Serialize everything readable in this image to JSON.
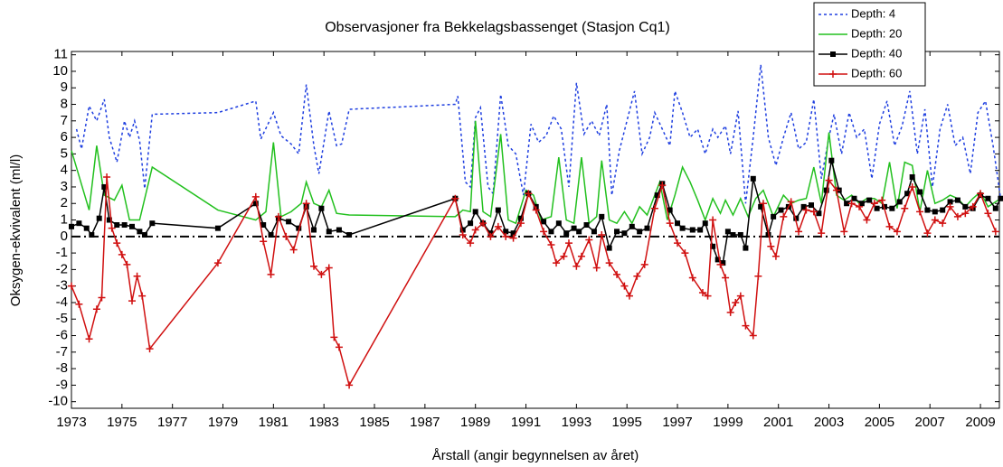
{
  "chart_data": {
    "type": "line",
    "title": "Observasjoner fra Bekkelagsbassenget (Stasjon Cq1)",
    "xlabel": "Årstall (angir begynnelsen av året)",
    "ylabel": "Oksygen-ekvivalent (ml/l)",
    "xlim": [
      1973,
      2009.75
    ],
    "xticks": [
      1973,
      1975,
      1977,
      1979,
      1981,
      1983,
      1985,
      1987,
      1989,
      1991,
      1993,
      1995,
      1997,
      1999,
      2001,
      2003,
      2005,
      2007,
      2009
    ],
    "ylim": [
      -10.4,
      11.2
    ],
    "yticks": [
      -10,
      -9,
      -8,
      -7,
      -6,
      -5,
      -4,
      -3,
      -2,
      -1,
      0,
      1,
      2,
      3,
      4,
      5,
      6,
      7,
      8,
      9,
      10,
      11
    ],
    "reference_line": 0,
    "legend": "top-right",
    "series": [
      {
        "name": "Depth: 4",
        "color": "#1f3fe0",
        "style": "dashed",
        "marker": "none",
        "x": [
          1973.2,
          1973.4,
          1973.7,
          1974.0,
          1974.3,
          1974.5,
          1974.8,
          1975.1,
          1975.3,
          1975.5,
          1975.7,
          1975.9,
          1976.2,
          1978.8,
          1980.3,
          1980.5,
          1981.0,
          1981.3,
          1981.7,
          1982.0,
          1982.3,
          1982.6,
          1982.8,
          1983.2,
          1983.5,
          1983.7,
          1984.0,
          1988.2,
          1988.3,
          1988.6,
          1988.8,
          1989.0,
          1989.2,
          1989.5,
          1989.7,
          1990.0,
          1990.3,
          1990.6,
          1990.9,
          1991.2,
          1991.5,
          1991.8,
          1992.1,
          1992.4,
          1992.7,
          1993.0,
          1993.3,
          1993.6,
          1993.9,
          1994.2,
          1994.4,
          1994.7,
          1995.0,
          1995.3,
          1995.6,
          1995.9,
          1996.1,
          1996.4,
          1996.7,
          1996.9,
          1997.2,
          1997.5,
          1997.8,
          1998.1,
          1998.4,
          1998.6,
          1998.9,
          1999.1,
          1999.4,
          1999.7,
          2000.0,
          2000.3,
          2000.6,
          2000.9,
          2001.2,
          2001.5,
          2001.8,
          2002.1,
          2002.4,
          2002.7,
          2003.0,
          2003.2,
          2003.5,
          2003.8,
          2004.1,
          2004.4,
          2004.7,
          2005.0,
          2005.3,
          2005.6,
          2005.9,
          2006.2,
          2006.5,
          2006.8,
          2007.1,
          2007.4,
          2007.7,
          2008.0,
          2008.3,
          2008.6,
          2008.9,
          2009.2,
          2009.5,
          2009.8
        ],
        "values": [
          6.5,
          5.3,
          7.9,
          7.0,
          8.3,
          6.0,
          4.5,
          7.0,
          6.0,
          7.0,
          5.8,
          2.9,
          7.4,
          7.5,
          8.2,
          5.9,
          7.5,
          6.1,
          5.6,
          5.0,
          9.2,
          5.5,
          3.8,
          7.6,
          5.5,
          5.6,
          7.7,
          8.0,
          8.5,
          3.3,
          3.0,
          7.2,
          7.8,
          3.0,
          2.6,
          8.6,
          5.5,
          5.0,
          2.5,
          6.8,
          5.7,
          6.1,
          7.3,
          6.5,
          3.0,
          9.3,
          6.2,
          7.0,
          6.1,
          8.0,
          2.5,
          5.2,
          7.0,
          8.8,
          5.0,
          6.0,
          7.5,
          6.5,
          5.5,
          8.8,
          7.5,
          6.0,
          6.5,
          5.0,
          6.5,
          6.0,
          6.7,
          5.0,
          7.6,
          2.0,
          6.0,
          10.4,
          6.0,
          4.3,
          6.0,
          7.5,
          5.3,
          5.7,
          8.3,
          3.5,
          6.0,
          7.4,
          5.0,
          7.5,
          6.0,
          6.5,
          3.5,
          6.8,
          8.2,
          5.5,
          6.7,
          8.8,
          5.0,
          7.7,
          3.0,
          6.5,
          8.0,
          5.5,
          6.0,
          3.8,
          7.5,
          8.2,
          5.5,
          2.3
        ]
      },
      {
        "name": "Depth: 20",
        "color": "#22c01e",
        "style": "solid",
        "marker": "none",
        "x": [
          1973.0,
          1973.7,
          1974.0,
          1974.3,
          1974.7,
          1975.0,
          1975.3,
          1975.7,
          1976.2,
          1978.8,
          1980.3,
          1980.7,
          1981.0,
          1981.3,
          1981.7,
          1982.1,
          1982.3,
          1982.6,
          1982.9,
          1983.2,
          1983.5,
          1984.0,
          1988.2,
          1988.5,
          1988.8,
          1989.0,
          1989.3,
          1989.6,
          1990.0,
          1990.3,
          1990.6,
          1991.0,
          1991.3,
          1991.6,
          1992.0,
          1992.3,
          1992.6,
          1992.9,
          1993.2,
          1993.5,
          1993.8,
          1994.0,
          1994.3,
          1994.6,
          1994.9,
          1995.2,
          1995.5,
          1995.8,
          1996.3,
          1996.6,
          1996.9,
          1997.2,
          1997.5,
          1997.8,
          1998.1,
          1998.4,
          1998.7,
          1998.9,
          1999.2,
          1999.5,
          1999.8,
          2000.1,
          2000.4,
          2000.8,
          2001.2,
          2001.5,
          2001.8,
          2002.1,
          2002.4,
          2002.7,
          2003.0,
          2003.3,
          2003.6,
          2003.9,
          2004.2,
          2004.5,
          2004.8,
          2005.1,
          2005.4,
          2005.7,
          2006.0,
          2006.3,
          2006.6,
          2006.9,
          2007.2,
          2007.5,
          2007.8,
          2008.1,
          2008.4,
          2008.7,
          2009.0,
          2009.3,
          2009.7
        ],
        "values": [
          5.2,
          1.6,
          5.5,
          2.5,
          2.2,
          3.1,
          1.0,
          1.0,
          4.2,
          1.6,
          1.0,
          1.5,
          5.7,
          1.2,
          1.5,
          2.0,
          3.3,
          2.0,
          1.8,
          2.8,
          1.4,
          1.3,
          1.2,
          1.6,
          1.5,
          7.0,
          1.5,
          1.2,
          6.2,
          1.0,
          0.8,
          2.8,
          2.5,
          1.0,
          1.2,
          4.8,
          1.0,
          0.8,
          4.8,
          0.8,
          1.2,
          4.6,
          1.0,
          0.8,
          1.5,
          0.8,
          1.8,
          1.3,
          3.3,
          1.0,
          2.5,
          4.2,
          3.3,
          2.2,
          1.0,
          2.3,
          1.4,
          2.2,
          1.3,
          2.3,
          1.2,
          2.3,
          2.8,
          1.2,
          2.5,
          2.0,
          2.2,
          2.3,
          4.2,
          2.0,
          6.3,
          2.5,
          2.2,
          2.5,
          2.0,
          2.3,
          2.3,
          2.0,
          4.5,
          1.7,
          4.5,
          4.3,
          1.5,
          4.0,
          2.0,
          2.2,
          2.5,
          2.3,
          1.8,
          2.3,
          2.7,
          1.8,
          2.2
        ]
      },
      {
        "name": "Depth: 40",
        "color": "#000000",
        "style": "solid",
        "marker": "square",
        "x": [
          1973.0,
          1973.3,
          1973.6,
          1973.8,
          1974.1,
          1974.3,
          1974.5,
          1974.8,
          1975.1,
          1975.4,
          1975.7,
          1975.9,
          1976.2,
          1978.8,
          1980.3,
          1980.6,
          1980.9,
          1981.2,
          1981.6,
          1982.0,
          1982.3,
          1982.6,
          1982.9,
          1983.2,
          1983.6,
          1984.0,
          1988.2,
          1988.5,
          1988.8,
          1989.0,
          1989.3,
          1989.6,
          1989.9,
          1990.2,
          1990.5,
          1990.8,
          1991.1,
          1991.4,
          1991.7,
          1992.0,
          1992.3,
          1992.6,
          1992.9,
          1993.1,
          1993.4,
          1993.7,
          1994.0,
          1994.3,
          1994.6,
          1994.9,
          1995.2,
          1995.5,
          1995.8,
          1996.2,
          1996.4,
          1996.7,
          1997.0,
          1997.2,
          1997.6,
          1997.9,
          1998.1,
          1998.4,
          1998.6,
          1998.8,
          1999.0,
          1999.2,
          1999.5,
          1999.7,
          2000.0,
          2000.3,
          2000.6,
          2000.8,
          2001.1,
          2001.4,
          2001.7,
          2002.0,
          2002.3,
          2002.6,
          2002.9,
          2003.1,
          2003.4,
          2003.7,
          2004.0,
          2004.3,
          2004.6,
          2004.9,
          2005.2,
          2005.5,
          2005.8,
          2006.1,
          2006.3,
          2006.6,
          2006.9,
          2007.2,
          2007.5,
          2007.8,
          2008.1,
          2008.4,
          2008.7,
          2009.0,
          2009.3,
          2009.6,
          2009.8
        ],
        "values": [
          0.6,
          0.8,
          0.5,
          0.1,
          1.1,
          3.0,
          1.0,
          0.7,
          0.7,
          0.6,
          0.3,
          0.1,
          0.8,
          0.5,
          2.0,
          0.7,
          0.1,
          1.1,
          0.9,
          0.5,
          1.8,
          0.4,
          1.7,
          0.3,
          0.4,
          0.1,
          2.3,
          0.4,
          0.8,
          1.5,
          0.8,
          0.2,
          1.6,
          0.3,
          0.2,
          1.1,
          2.6,
          1.8,
          0.9,
          0.3,
          0.8,
          0.2,
          0.5,
          0.3,
          0.7,
          0.3,
          1.2,
          -0.7,
          0.3,
          0.2,
          0.6,
          0.3,
          0.5,
          2.5,
          3.2,
          1.6,
          0.8,
          0.5,
          0.4,
          0.4,
          0.8,
          -0.6,
          -1.4,
          -1.6,
          0.3,
          0.1,
          0.1,
          -0.7,
          3.5,
          1.8,
          0.1,
          1.2,
          1.6,
          1.8,
          1.1,
          1.8,
          1.9,
          1.4,
          2.8,
          4.6,
          2.8,
          2.0,
          2.3,
          2.0,
          2.2,
          1.7,
          1.8,
          1.7,
          2.1,
          2.6,
          3.6,
          2.7,
          1.6,
          1.5,
          1.6,
          2.1,
          2.2,
          1.8,
          1.7,
          2.5,
          2.3,
          1.7,
          2.3
        ]
      },
      {
        "name": "Depth: 60",
        "color": "#d01010",
        "style": "solid",
        "marker": "plus",
        "x": [
          1973.0,
          1973.3,
          1973.7,
          1974.0,
          1974.2,
          1974.4,
          1974.6,
          1974.8,
          1975.0,
          1975.2,
          1975.4,
          1975.6,
          1975.8,
          1976.1,
          1978.8,
          1980.3,
          1980.6,
          1980.9,
          1981.2,
          1981.5,
          1981.8,
          1982.3,
          1982.6,
          1982.9,
          1983.2,
          1983.4,
          1983.6,
          1984.0,
          1988.2,
          1988.5,
          1988.8,
          1989.0,
          1989.3,
          1989.6,
          1989.9,
          1990.2,
          1990.5,
          1990.8,
          1991.1,
          1991.4,
          1991.7,
          1992.0,
          1992.2,
          1992.5,
          1992.7,
          1993.0,
          1993.2,
          1993.5,
          1993.8,
          1994.0,
          1994.3,
          1994.6,
          1994.9,
          1995.1,
          1995.4,
          1995.7,
          1996.1,
          1996.4,
          1996.7,
          1997.0,
          1997.3,
          1997.6,
          1998.0,
          1998.2,
          1998.4,
          1998.7,
          1998.9,
          1999.1,
          1999.3,
          1999.5,
          1999.7,
          2000.0,
          2000.2,
          2000.4,
          2000.7,
          2000.9,
          2001.2,
          2001.5,
          2001.8,
          2002.1,
          2002.4,
          2002.7,
          2003.0,
          2003.3,
          2003.6,
          2003.9,
          2004.2,
          2004.5,
          2004.8,
          2005.1,
          2005.4,
          2005.7,
          2006.0,
          2006.3,
          2006.6,
          2006.9,
          2007.2,
          2007.5,
          2007.8,
          2008.1,
          2008.4,
          2008.7,
          2009.0,
          2009.3,
          2009.6
        ],
        "values": [
          -3.0,
          -4.1,
          -6.2,
          -4.4,
          -3.7,
          3.6,
          0.5,
          -0.4,
          -1.1,
          -1.7,
          -3.9,
          -2.4,
          -3.6,
          -6.8,
          -1.6,
          2.4,
          -0.3,
          -2.3,
          1.2,
          0.0,
          -0.8,
          2.0,
          -1.8,
          -2.3,
          -1.9,
          -6.1,
          -6.7,
          -9.0,
          2.3,
          0.1,
          -0.4,
          0.4,
          0.8,
          0.0,
          0.6,
          0.0,
          -0.1,
          0.8,
          2.6,
          1.6,
          0.3,
          -0.5,
          -1.6,
          -1.2,
          -0.4,
          -1.8,
          -1.2,
          -0.2,
          -1.9,
          0.1,
          -1.6,
          -2.3,
          -3.0,
          -3.6,
          -2.4,
          -1.7,
          1.7,
          3.1,
          0.8,
          -0.4,
          -1.0,
          -2.5,
          -3.4,
          -3.6,
          1.0,
          -1.7,
          -2.5,
          -4.6,
          -4.0,
          -3.6,
          -5.4,
          -6.0,
          -2.4,
          2.0,
          -0.6,
          -1.2,
          1.2,
          2.1,
          0.3,
          1.6,
          1.5,
          0.2,
          3.4,
          2.8,
          0.3,
          2.0,
          1.8,
          1.0,
          2.0,
          2.2,
          0.6,
          0.3,
          1.7,
          3.0,
          1.5,
          0.2,
          1.0,
          0.8,
          1.8,
          1.2,
          1.4,
          1.8,
          2.6,
          1.4,
          0.3
        ]
      }
    ]
  }
}
